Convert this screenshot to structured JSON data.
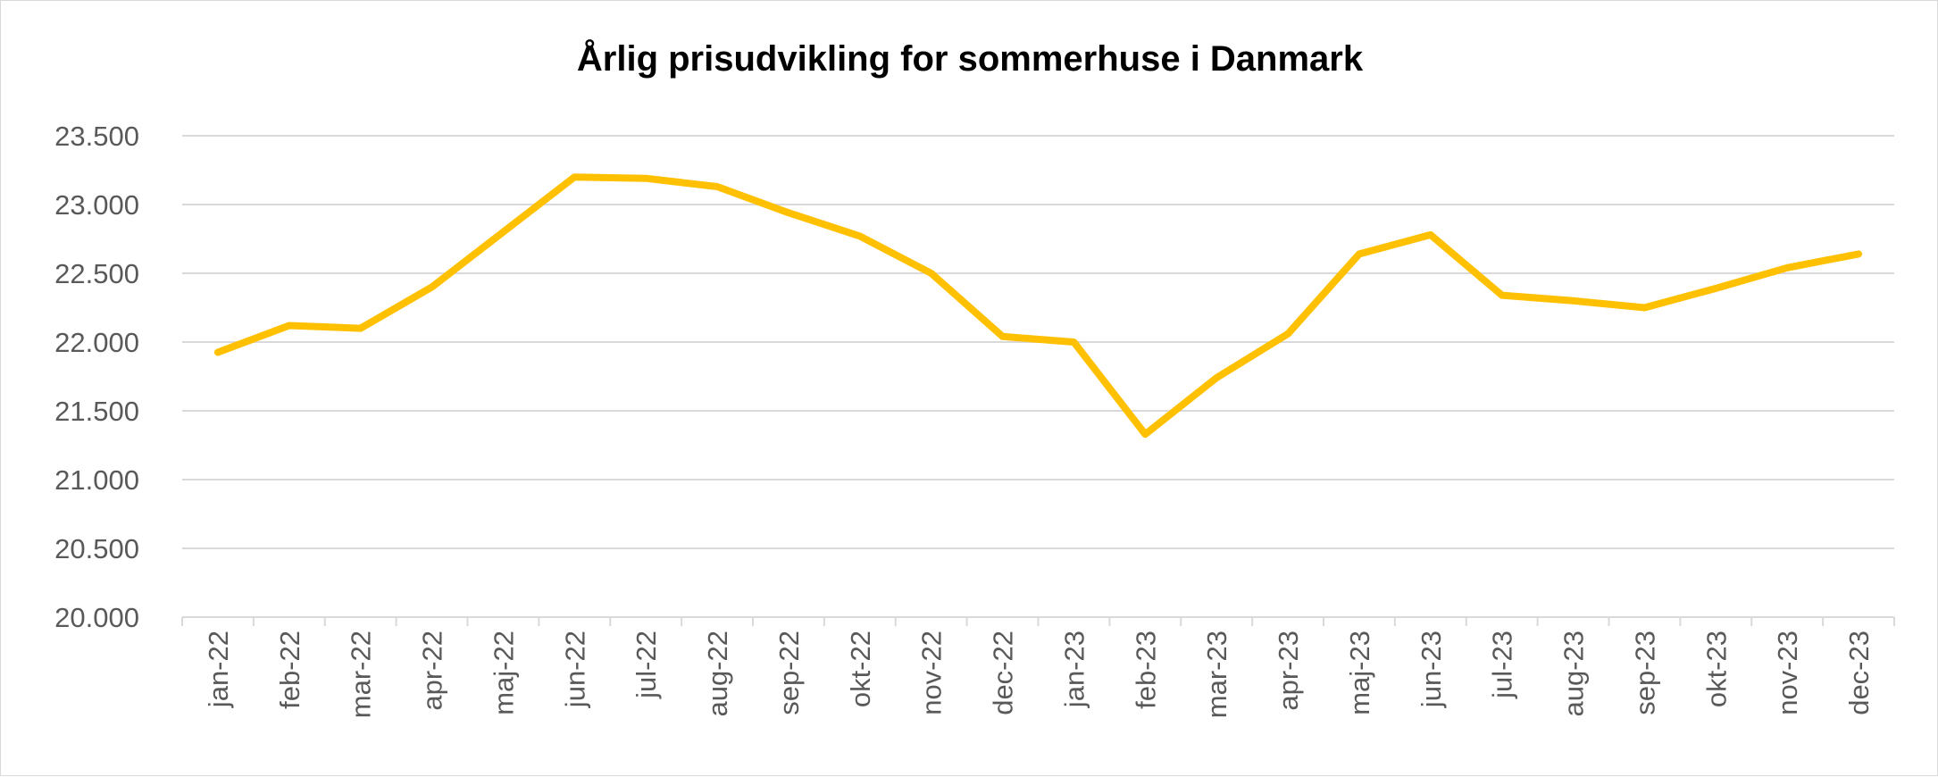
{
  "chart_data": {
    "type": "line",
    "title": "Årlig prisudvikling for sommerhuse i Danmark",
    "xlabel": "",
    "ylabel": "",
    "categories": [
      "jan-22",
      "feb-22",
      "mar-22",
      "apr-22",
      "maj-22",
      "jun-22",
      "jul-22",
      "aug-22",
      "sep-22",
      "okt-22",
      "nov-22",
      "dec-22",
      "jan-23",
      "feb-23",
      "mar-23",
      "apr-23",
      "maj-23",
      "jun-23",
      "jul-23",
      "aug-23",
      "sep-23",
      "okt-23",
      "nov-23",
      "dec-23"
    ],
    "series": [
      {
        "values": [
          21925,
          22120,
          22100,
          22400,
          22800,
          23200,
          23190,
          23130,
          22940,
          22770,
          22500,
          22040,
          22000,
          21330,
          21740,
          22060,
          22640,
          22780,
          22340,
          22300,
          22250,
          22390,
          22540,
          22640
        ],
        "color": "#FFC000"
      }
    ],
    "ylim": [
      20000,
      23500
    ],
    "yticks": [
      "20.000",
      "20.500",
      "21.000",
      "21.500",
      "22.000",
      "22.500",
      "23.000",
      "23.500"
    ],
    "grid": true,
    "legend": "none"
  }
}
